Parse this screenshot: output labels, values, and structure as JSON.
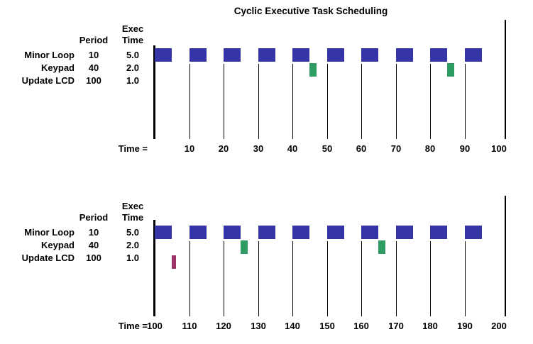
{
  "labels": {
    "period_header": "Period",
    "exec_header_line1": "Exec",
    "exec_header_line2": "Time",
    "time_prefix": "Time ="
  },
  "chart_data": {
    "type": "bar",
    "variant": "cyclic-executive-gantt-schedule",
    "title": "Cyclic Executive Task Scheduling",
    "x_axis": {
      "label_prefix": "Time =",
      "tick_interval": 10
    },
    "tasks": [
      {
        "name": "Minor Loop",
        "period": 10,
        "exec_time": 5.0,
        "color": "#3535a8"
      },
      {
        "name": "Keypad",
        "period": 40,
        "exec_time": 2.0,
        "color": "#2f9c63"
      },
      {
        "name": "Update LCD",
        "period": 100,
        "exec_time": 1.0,
        "color": "#993366"
      }
    ],
    "panels": [
      {
        "time_range": [
          0,
          100
        ],
        "tick_labels": [
          10,
          20,
          30,
          40,
          50,
          60,
          70,
          80,
          90,
          100
        ],
        "grid_ticks": [
          10,
          20,
          30,
          40,
          50,
          60,
          70,
          80,
          90
        ],
        "executions": [
          {
            "task": "Minor Loop",
            "duration": 5,
            "starts": [
              0,
              10,
              20,
              30,
              40,
              50,
              60,
              70,
              80,
              90
            ]
          },
          {
            "task": "Keypad",
            "duration": 2,
            "starts": [
              45,
              85
            ]
          },
          {
            "task": "Update LCD",
            "duration": 1,
            "starts": []
          }
        ]
      },
      {
        "time_range": [
          100,
          200
        ],
        "tick_labels": [
          100,
          110,
          120,
          130,
          140,
          150,
          160,
          170,
          180,
          190,
          200
        ],
        "grid_ticks": [
          110,
          120,
          130,
          140,
          150,
          160,
          170,
          180,
          190
        ],
        "executions": [
          {
            "task": "Minor Loop",
            "duration": 5,
            "starts": [
              100,
              110,
              120,
              130,
              140,
              150,
              160,
              170,
              180,
              190
            ]
          },
          {
            "task": "Keypad",
            "duration": 2,
            "starts": [
              125,
              165
            ]
          },
          {
            "task": "Update LCD",
            "duration": 1,
            "starts": [
              105
            ]
          }
        ]
      }
    ]
  }
}
